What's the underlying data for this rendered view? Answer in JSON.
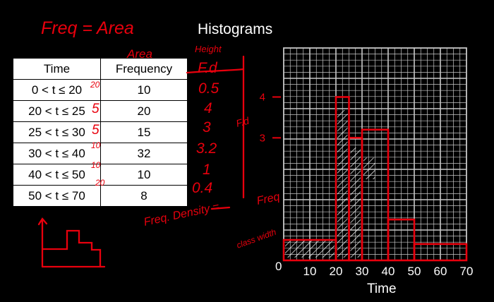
{
  "title": "Histograms",
  "table": {
    "headers": [
      "Time",
      "Frequency"
    ],
    "rows": [
      {
        "time": "0 < t ≤ 20",
        "frequency": "10"
      },
      {
        "time": "20 < t ≤ 25",
        "frequency": "20"
      },
      {
        "time": "25 < t ≤ 30",
        "frequency": "15"
      },
      {
        "time": "30 < t ≤ 40",
        "frequency": "32"
      },
      {
        "time": "40 < t ≤ 50",
        "frequency": "10"
      },
      {
        "time": "50 < t ≤ 70",
        "frequency": "8"
      }
    ]
  },
  "annotations": {
    "heading": "Freq = Area",
    "area_label": "Area",
    "height_label": "Height",
    "fd_header": "F.d",
    "fd_values": [
      "0.5",
      "4",
      "3",
      "3.2",
      "1",
      "0.4"
    ],
    "class_widths": [
      "20",
      "5",
      "5",
      "10",
      "10",
      "20"
    ],
    "side_label": "F.d",
    "formula_left": "Freq. Density =",
    "formula_numerator": "Freq",
    "formula_denominator": "class width"
  },
  "chart_data": {
    "type": "histogram",
    "xlabel": "Time",
    "x_ticks": [
      "0",
      "10",
      "20",
      "30",
      "40",
      "50",
      "60",
      "70"
    ],
    "y_ticks": [
      "3",
      "4"
    ],
    "bins": [
      {
        "from": 0,
        "to": 20,
        "density": 0.5
      },
      {
        "from": 20,
        "to": 25,
        "density": 4
      },
      {
        "from": 25,
        "to": 30,
        "density": 3
      },
      {
        "from": 30,
        "to": 40,
        "density": 3.2
      },
      {
        "from": 40,
        "to": 50,
        "density": 1
      },
      {
        "from": 50,
        "to": 70,
        "density": 0.4
      }
    ],
    "xlim": [
      0,
      70
    ],
    "ylim": [
      0,
      5.2
    ],
    "grid": true
  },
  "colors": {
    "background": "#000000",
    "ink": "#e8000d",
    "chalk": "#ffffff",
    "grid": "#c8c8c8"
  }
}
